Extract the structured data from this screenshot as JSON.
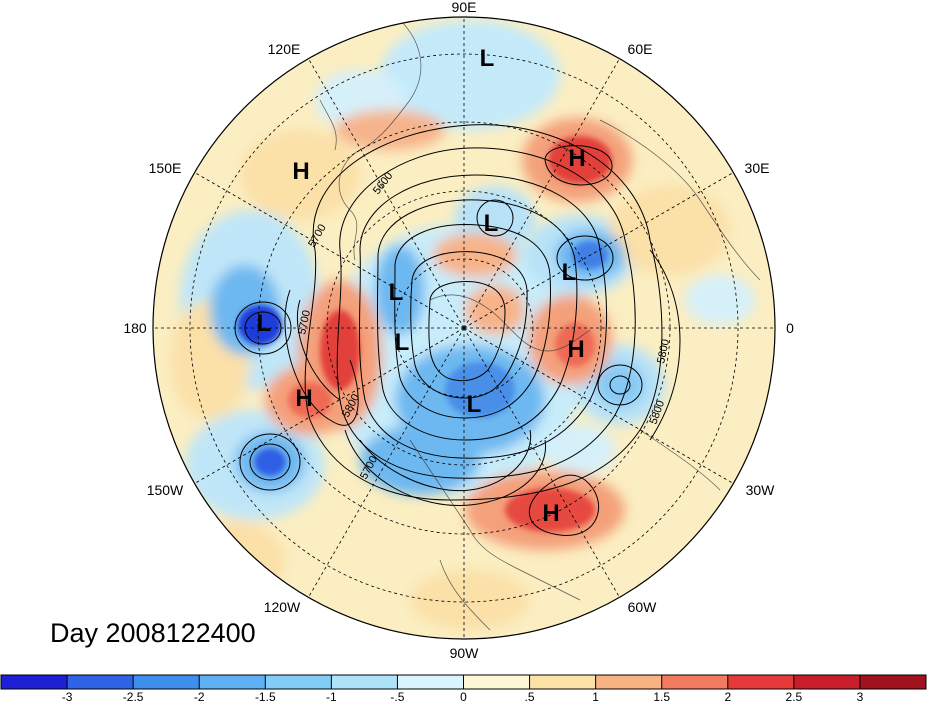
{
  "title": "Day 2008122400",
  "longitude_labels": {
    "top": "90E",
    "upper_left": "120E",
    "upper_right": "60E",
    "left_upper": "150E",
    "right_upper": "30E",
    "left": "180",
    "right": "0",
    "left_lower": "150W",
    "right_lower": "30W",
    "lower_left": "120W",
    "lower_right": "60W",
    "bottom": "90W"
  },
  "pressure_centers": [
    {
      "type": "L",
      "name": "low-north-siberia"
    },
    {
      "type": "H",
      "name": "high-northwest-pacific"
    },
    {
      "type": "H",
      "name": "high-western-russia"
    },
    {
      "type": "L",
      "name": "low-arctic-center"
    },
    {
      "type": "L",
      "name": "low-scandinavia"
    },
    {
      "type": "L",
      "name": "low-bering"
    },
    {
      "type": "L",
      "name": "low-alaska-upper"
    },
    {
      "type": "L",
      "name": "low-aleutian"
    },
    {
      "type": "L",
      "name": "low-canada-arctic"
    },
    {
      "type": "H",
      "name": "high-gulf-of-alaska"
    },
    {
      "type": "H",
      "name": "high-north-atlantic"
    },
    {
      "type": "H",
      "name": "high-atlantic-subtropical"
    }
  ],
  "contour_labels": [
    "5600",
    "5700",
    "5700",
    "5800",
    "5700",
    "5800",
    "5800"
  ],
  "colorbar": {
    "ticks": [
      "-3",
      "-2.5",
      "-2",
      "-1.5",
      "-1",
      "-.5",
      "0",
      ".5",
      "1",
      "1.5",
      "2",
      "2.5",
      "3"
    ],
    "colors": [
      "#1f1fd6",
      "#2f63e6",
      "#3d8fee",
      "#5db0f3",
      "#82cdf7",
      "#ade4fa",
      "#daf3fc",
      "#fdf7d6",
      "#fbe2a6",
      "#f8b383",
      "#f27a5e",
      "#e63a3a",
      "#c81e2a",
      "#a0121e"
    ]
  }
}
